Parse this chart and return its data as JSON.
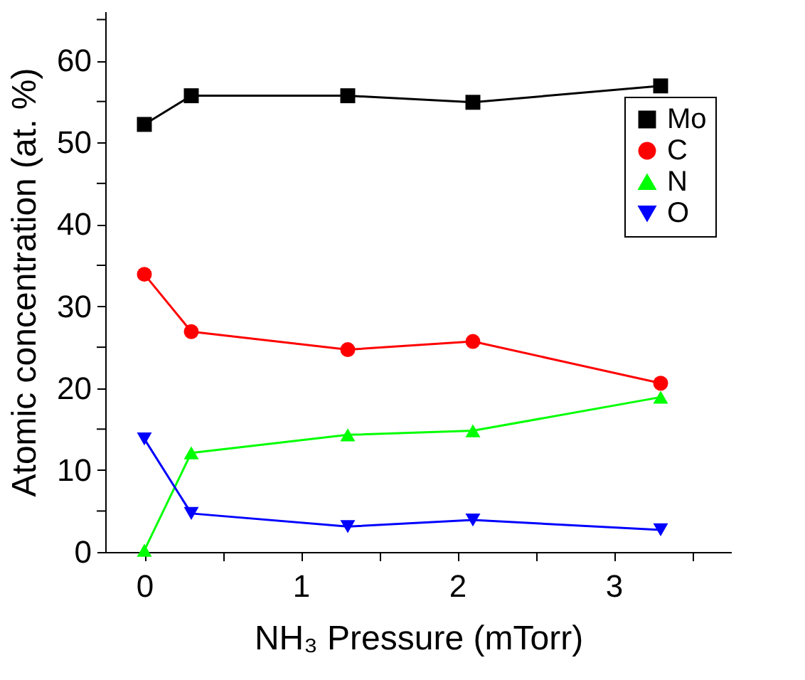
{
  "chart_data": {
    "type": "line",
    "xlabel": "NH₃ Pressure (mTorr)",
    "ylabel": "Atomic concentration (at. %)",
    "x": [
      0,
      0.3,
      1.3,
      2.1,
      3.3
    ],
    "series": [
      {
        "name": "Mo",
        "color": "#000000",
        "marker": "square",
        "values": [
          52.2,
          55.7,
          55.7,
          54.9,
          56.9
        ]
      },
      {
        "name": "C",
        "color": "#ff0000",
        "marker": "circle",
        "values": [
          33.9,
          26.9,
          24.7,
          25.7,
          20.6
        ]
      },
      {
        "name": "N",
        "color": "#00ff00",
        "marker": "triangle",
        "values": [
          0.2,
          12.1,
          14.3,
          14.8,
          18.9
        ]
      },
      {
        "name": "O",
        "color": "#0000ff",
        "marker": "triangle-down",
        "values": [
          13.8,
          4.7,
          3.1,
          3.9,
          2.7
        ]
      }
    ],
    "xlim": [
      -0.25,
      3.75
    ],
    "xticks": [
      0,
      {
        "value": 0.5,
        "label": null
      },
      1,
      {
        "value": 1.5,
        "label": null
      },
      2,
      {
        "value": 2.5,
        "label": null
      },
      3,
      {
        "value": 3.5,
        "label": null
      }
    ],
    "ylim": [
      0,
      66
    ],
    "yticks": [
      0,
      {
        "value": 5,
        "label": null
      },
      10,
      {
        "value": 15,
        "label": null
      },
      20,
      {
        "value": 25,
        "label": null
      },
      30,
      {
        "value": 35,
        "label": null
      },
      40,
      {
        "value": 45,
        "label": null
      },
      50,
      {
        "value": 55,
        "label": null
      },
      60,
      {
        "value": 65,
        "label": null
      }
    ],
    "grid": false,
    "legend": "top right",
    "line_style": "solid"
  }
}
